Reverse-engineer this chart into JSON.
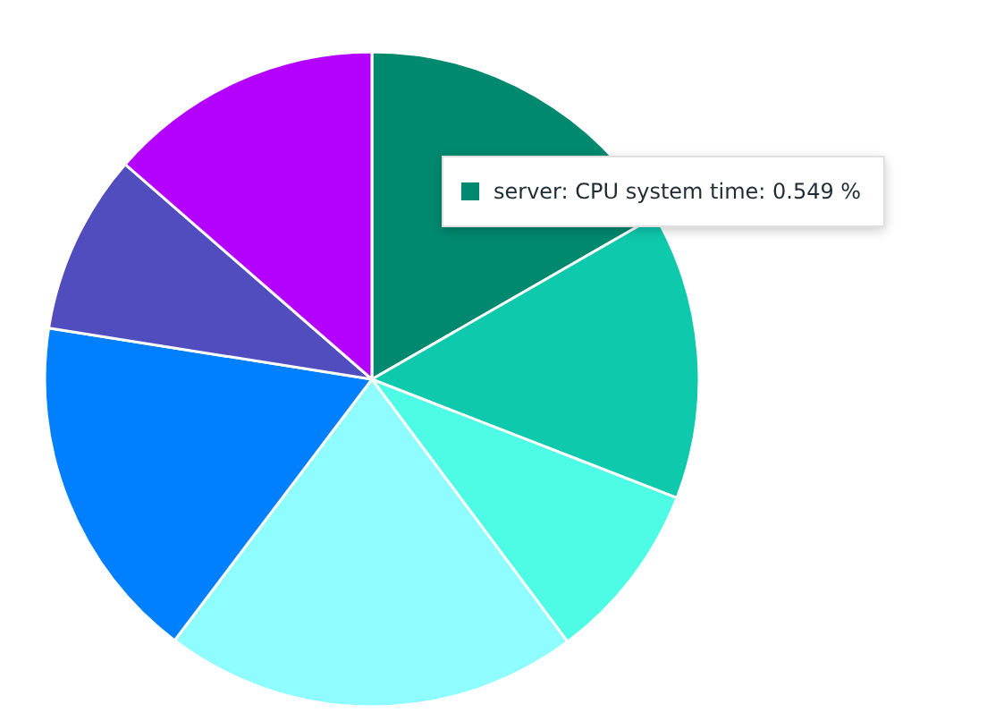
{
  "chart_data": {
    "type": "pie",
    "categories": [
      null,
      null,
      null,
      null,
      null,
      null,
      null
    ],
    "values": [
      16.7,
      14.2,
      8.9,
      20.5,
      17.2,
      8.9,
      13.6
    ],
    "colors": [
      "#00896f",
      "#0ec9ac",
      "#4efbe5",
      "#8ffcff",
      "#0080ff",
      "#524dbe",
      "#b400ff"
    ],
    "annotations": [
      "server: CPU system time: 0.549 %"
    ],
    "legend": false
  }
}
